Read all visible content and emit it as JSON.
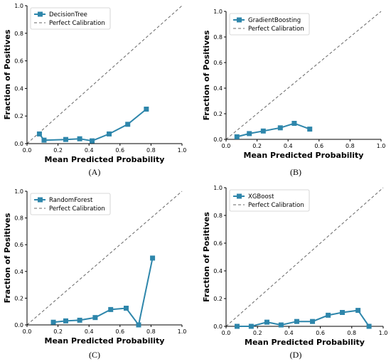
{
  "colors": {
    "model": "#2e86ab",
    "diagonal": "#666666",
    "axis": "#000000"
  },
  "legend": {
    "reference_label": "Perfect Calibration",
    "placement": "upper-left"
  },
  "chart_data": [
    {
      "type": "line",
      "panel_label": "(A)",
      "xlabel": "Mean Predicted Probability",
      "ylabel": "Fraction of Positives",
      "xlim": [
        0,
        1
      ],
      "ylim": [
        0,
        1
      ],
      "x_ticks": [
        "0.0",
        "0.2",
        "0.4",
        "0.6",
        "0.8",
        "1.0"
      ],
      "y_ticks": [
        "0.0",
        "0.2",
        "0.4",
        "0.6",
        "0.8",
        "1.0"
      ],
      "grid": false,
      "reference_line": {
        "x": [
          0,
          1
        ],
        "y": [
          0,
          1
        ]
      },
      "series": [
        {
          "name": "DecisionTree",
          "x": [
            0.08,
            0.11,
            0.25,
            0.34,
            0.42,
            0.53,
            0.65,
            0.77
          ],
          "y": [
            0.07,
            0.025,
            0.03,
            0.035,
            0.02,
            0.07,
            0.14,
            0.25
          ]
        }
      ]
    },
    {
      "type": "line",
      "panel_label": "(B)",
      "xlabel": "Mean Predicted Probability",
      "ylabel": "Fraction of Positives",
      "xlim": [
        0,
        1
      ],
      "ylim": [
        0,
        1
      ],
      "x_ticks": [
        "0.0",
        "0.2",
        "0.4",
        "0.6",
        "0.8",
        "1.0"
      ],
      "y_ticks": [
        "0.0",
        "0.2",
        "0.4",
        "0.6",
        "0.8",
        "1.0"
      ],
      "grid": false,
      "reference_line": {
        "x": [
          0,
          1
        ],
        "y": [
          0,
          1
        ]
      },
      "series": [
        {
          "name": "GradientBoosting",
          "x": [
            0.07,
            0.15,
            0.24,
            0.35,
            0.44,
            0.54
          ],
          "y": [
            0.02,
            0.045,
            0.065,
            0.09,
            0.125,
            0.08
          ]
        }
      ]
    },
    {
      "type": "line",
      "panel_label": "(C)",
      "xlabel": "Mean Predicted Probability",
      "ylabel": "Fraction of Positives",
      "xlim": [
        0,
        1
      ],
      "ylim": [
        0,
        1
      ],
      "x_ticks": [
        "0.0",
        "0.2",
        "0.4",
        "0.6",
        "0.8",
        "1.0"
      ],
      "y_ticks": [
        "0.0",
        "0.2",
        "0.4",
        "0.6",
        "0.8",
        "1.0"
      ],
      "grid": false,
      "reference_line": {
        "x": [
          0,
          1
        ],
        "y": [
          0,
          1
        ]
      },
      "series": [
        {
          "name": "RandomForest",
          "x": [
            0.17,
            0.25,
            0.34,
            0.44,
            0.54,
            0.64,
            0.72,
            0.81
          ],
          "y": [
            0.02,
            0.03,
            0.035,
            0.055,
            0.115,
            0.125,
            0.0,
            0.5
          ]
        }
      ]
    },
    {
      "type": "line",
      "panel_label": "(D)",
      "xlabel": "Mean Predicted Probability",
      "ylabel": "Fraction of Positives",
      "xlim": [
        0,
        1
      ],
      "ylim": [
        0,
        1
      ],
      "x_ticks": [
        "0.0",
        "0.2",
        "0.4",
        "0.6",
        "0.8",
        "1.0"
      ],
      "y_ticks": [
        "0.0",
        "0.2",
        "0.4",
        "0.6",
        "0.8",
        "1.0"
      ],
      "grid": false,
      "reference_line": {
        "x": [
          0,
          1
        ],
        "y": [
          0,
          1
        ]
      },
      "series": [
        {
          "name": "XGBoost",
          "x": [
            0.07,
            0.16,
            0.26,
            0.35,
            0.45,
            0.55,
            0.65,
            0.74,
            0.84,
            0.91
          ],
          "y": [
            0.0,
            0.0,
            0.03,
            0.01,
            0.035,
            0.035,
            0.08,
            0.1,
            0.115,
            0.0
          ]
        }
      ]
    }
  ]
}
